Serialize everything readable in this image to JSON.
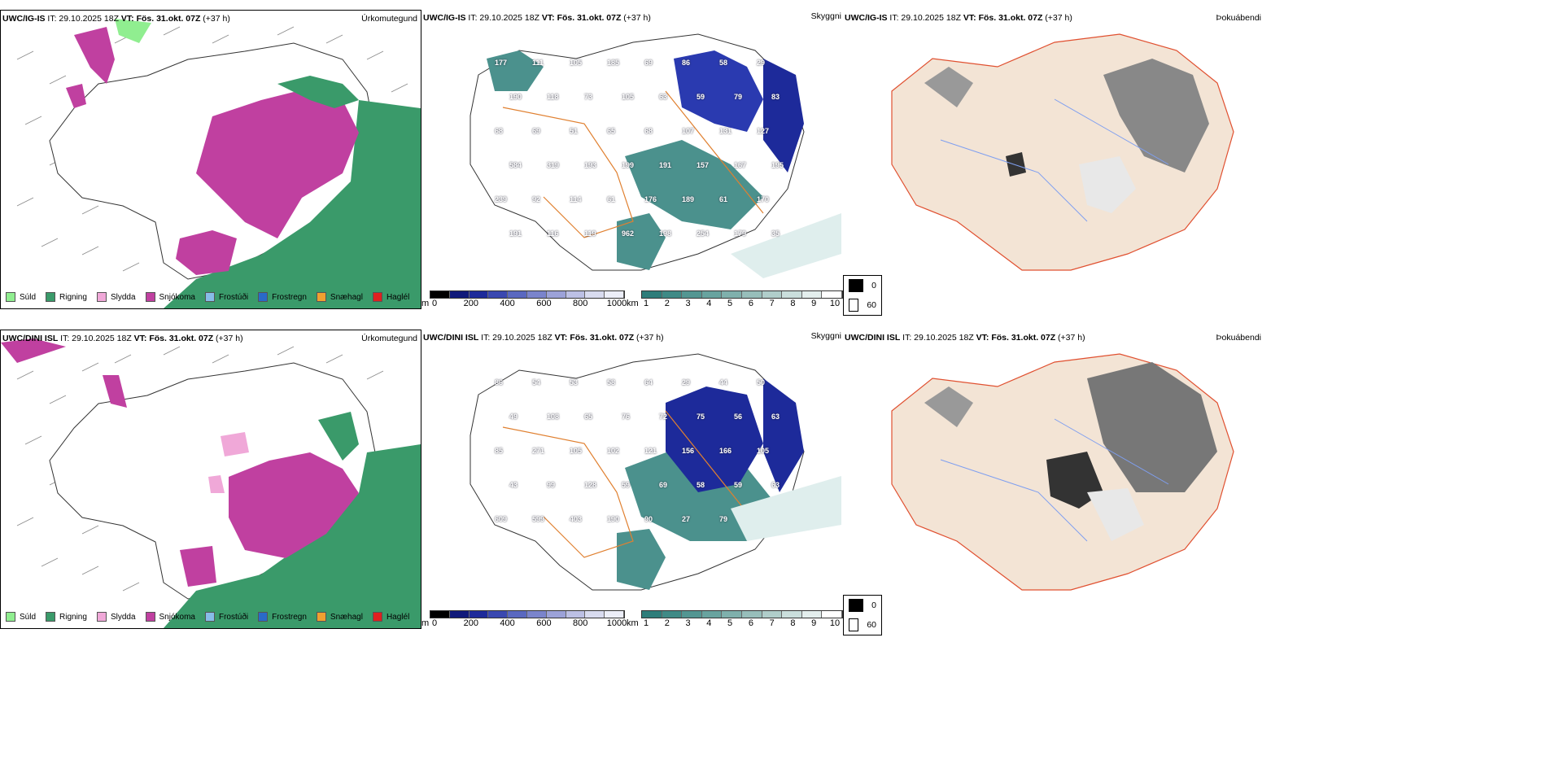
{
  "rows": [
    {
      "model": "UWC/IG-IS",
      "it": "IT: 29.10.2025 18Z",
      "vt_label": "VT:",
      "vt": "Fös. 31.okt. 07Z",
      "lead": "(+37 h)",
      "precip_title": "Úrkomutegund",
      "vis_title": "Skyggni",
      "fog_title": "Þokuábendi",
      "vis_labels": [
        "177",
        "111",
        "105",
        "185",
        "69",
        "86",
        "58",
        "29",
        "190",
        "118",
        "73",
        "105",
        "63",
        "59",
        "79",
        "83",
        "68",
        "69",
        "51",
        "65",
        "68",
        "107",
        "131",
        "127",
        "584",
        "319",
        "193",
        "199",
        "191",
        "157",
        "167",
        "195",
        "239",
        "92",
        "114",
        "61",
        "176",
        "189",
        "61",
        "170",
        "191",
        "116",
        "119",
        "962",
        "198",
        "254",
        "179",
        "35"
      ],
      "precip_types": [
        "Súld",
        "Rigning",
        "Slydda",
        "Snjókoma",
        "Frostúði",
        "Frostregn",
        "Snæhagl",
        "Haglél"
      ]
    },
    {
      "model": "UWC/DINI ISL",
      "it": "IT: 29.10.2025 18Z",
      "vt_label": "VT:",
      "vt": "Fös. 31.okt. 07Z",
      "lead": "(+37 h)",
      "precip_title": "Úrkomutegund",
      "vis_title": "Skyggni",
      "fog_title": "Þokuábendi",
      "vis_labels": [
        "86",
        "54",
        "53",
        "58",
        "64",
        "29",
        "44",
        "50",
        "49",
        "108",
        "65",
        "76",
        "72",
        "75",
        "56",
        "63",
        "85",
        "271",
        "105",
        "102",
        "121",
        "156",
        "166",
        "105",
        "43",
        "99",
        "128",
        "59",
        "69",
        "58",
        "59",
        "63",
        "609",
        "599",
        "403",
        "190",
        "90",
        "27",
        "79"
      ],
      "precip_types": [
        "Súld",
        "Rigning",
        "Slydda",
        "Snjókoma",
        "Frostúði",
        "Frostregn",
        "Snæhagl",
        "Haglél"
      ]
    }
  ],
  "precip_colors": [
    "#90ee90",
    "#3a9a6a",
    "#f0a8d8",
    "#c040a0",
    "#87bde8",
    "#2a6ac8",
    "#f0a030",
    "#e02020"
  ],
  "height_bar": {
    "unit": "m",
    "ticks": [
      "0",
      "200",
      "400",
      "600",
      "800",
      "1000"
    ],
    "colors": [
      "#000000",
      "#101a7a",
      "#1d2a9a",
      "#3a48b0",
      "#5a68c0",
      "#7a84cc",
      "#9ca2d8",
      "#bcc0e4",
      "#d8dbef",
      "#eceef8"
    ]
  },
  "visibility_bar": {
    "unit": "km",
    "ticks": [
      "1",
      "2",
      "3",
      "4",
      "5",
      "6",
      "7",
      "8",
      "9",
      "10"
    ],
    "colors": [
      "#2e7d7a",
      "#3f8a86",
      "#539692",
      "#68a39f",
      "#7fb0ac",
      "#97beba",
      "#b0cdca",
      "#cadedc",
      "#e3eeed",
      "#ffffff"
    ]
  },
  "fog_legend": {
    "values": [
      "0",
      "60"
    ],
    "colors": [
      "#000000",
      "#ffffff"
    ]
  }
}
